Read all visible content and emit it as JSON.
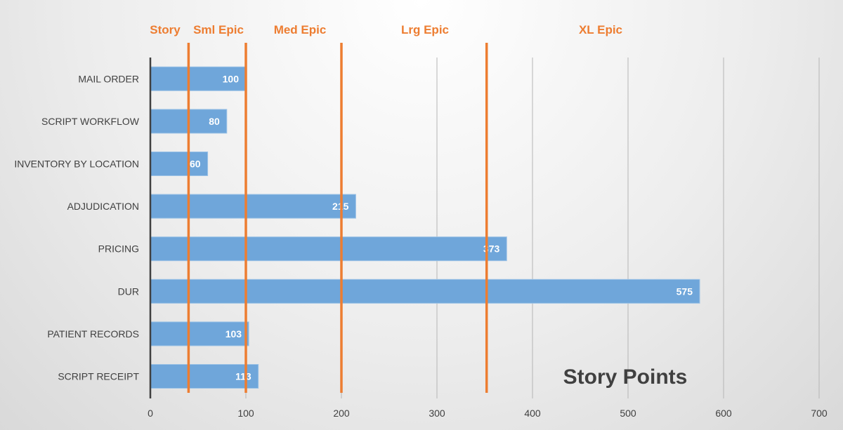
{
  "chart_data": {
    "type": "bar",
    "orientation": "horizontal",
    "title": "Story Points",
    "categories": [
      "MAIL ORDER",
      "SCRIPT WORKFLOW",
      "INVENTORY BY LOCATION",
      "ADJUDICATION",
      "PRICING",
      "DUR",
      "PATIENT RECORDS",
      "SCRIPT RECEIPT"
    ],
    "values": [
      100,
      80,
      60,
      215,
      373,
      575,
      103,
      113
    ],
    "xlim": [
      0,
      700
    ],
    "xticks": [
      0,
      100,
      200,
      300,
      400,
      500,
      600,
      700
    ],
    "grid": true,
    "bar_color": "#6fa6da",
    "threshold_color": "#ed7d31",
    "thresholds": [
      40,
      100,
      200,
      352
    ],
    "zones": [
      "Story",
      "Sml Epic",
      "Med Epic",
      "Lrg Epic",
      "XL Epic"
    ]
  }
}
